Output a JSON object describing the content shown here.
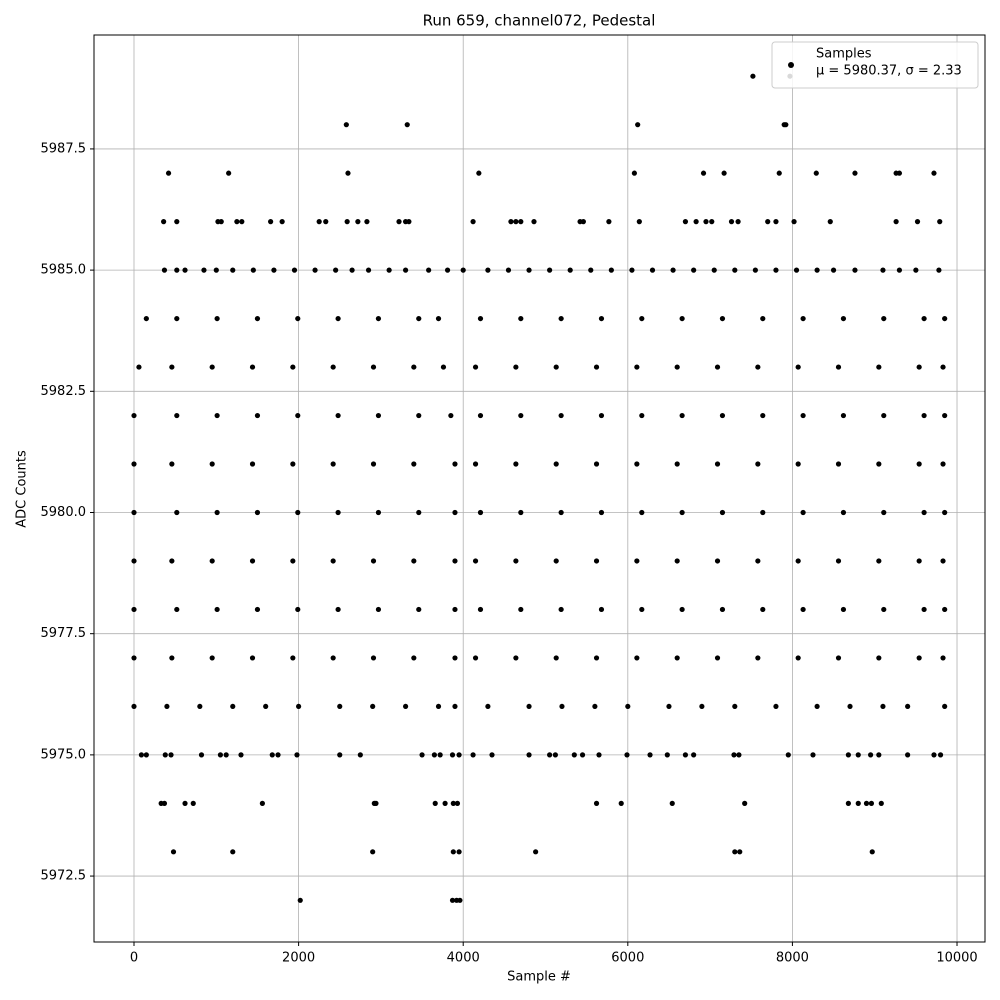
{
  "chart_data": {
    "type": "scatter",
    "title": "Run 659, channel072, Pedestal",
    "x_label": "Sample #",
    "y_label": "ADC Counts",
    "xlim": [
      -486,
      10340
    ],
    "ylim": [
      5971.14,
      5989.85
    ],
    "xticks": [
      0,
      2000,
      4000,
      6000,
      8000,
      10000
    ],
    "yticks": [
      5972.5,
      {
        "value": 5975,
        "label": "5975.0"
      },
      5977.5,
      {
        "value": 5980,
        "label": "5980.0"
      },
      5982.5,
      {
        "value": 5985,
        "label": "5985.0"
      },
      5987.5
    ],
    "grid": true,
    "legend_corner": "upper right",
    "legend_note": "μ = 5980.37, σ = 2.33",
    "series": [
      {
        "name": "Samples",
        "color": "#000000",
        "x": [
          7520,
          7970,
          2580,
          3320,
          6120,
          7900,
          7920,
          420,
          1150,
          2600,
          4190,
          6080,
          6920,
          7170,
          7840,
          8290,
          8760,
          9260,
          9300,
          9720,
          360,
          520,
          1020,
          1060,
          1250,
          1310,
          1660,
          1800,
          2250,
          2330,
          2590,
          2720,
          2830,
          3220,
          3300,
          3340,
          4120,
          4580,
          4640,
          4700,
          4860,
          5420,
          5460,
          5770,
          6140,
          6700,
          6830,
          6950,
          7020,
          7260,
          7340,
          7700,
          7800,
          8020,
          8460,
          9260,
          9520,
          9790,
          370,
          520,
          620,
          850,
          1000,
          1200,
          1450,
          1700,
          1950,
          2200,
          2450,
          2650,
          2850,
          3100,
          3300,
          3580,
          3810,
          4000,
          4300,
          4550,
          4800,
          5050,
          5300,
          5550,
          5800,
          6050,
          6300,
          6550,
          6800,
          7050,
          7300,
          7550,
          7800,
          8050,
          8300,
          8500,
          8760,
          9100,
          9300,
          9500,
          9780,
          150,
          520,
          1010,
          1500,
          1990,
          2480,
          2970,
          3460,
          3700,
          4210,
          4700,
          5190,
          5680,
          6170,
          6660,
          7150,
          7640,
          8130,
          8620,
          9110,
          9600,
          9850,
          60,
          460,
          950,
          1440,
          1930,
          2420,
          2910,
          3400,
          3760,
          4150,
          4640,
          5130,
          5620,
          6110,
          6600,
          7090,
          7580,
          8070,
          8560,
          9050,
          9540,
          9830,
          0,
          520,
          1010,
          1500,
          1990,
          2480,
          2970,
          3460,
          3850,
          4210,
          4700,
          5190,
          5680,
          6170,
          6660,
          7150,
          7640,
          8130,
          8620,
          9110,
          9600,
          9850,
          0,
          460,
          950,
          1440,
          1930,
          2420,
          2910,
          3400,
          3900,
          4150,
          4640,
          5130,
          5620,
          6110,
          6600,
          7090,
          7580,
          8070,
          8560,
          9050,
          9540,
          9830,
          0,
          520,
          1010,
          1500,
          1990,
          2480,
          2970,
          3460,
          3900,
          4210,
          4700,
          5190,
          5680,
          6170,
          6660,
          7150,
          7640,
          8130,
          8620,
          9110,
          9600,
          9850,
          0,
          460,
          950,
          1440,
          1930,
          2420,
          2910,
          3400,
          3900,
          4150,
          4640,
          5130,
          5620,
          6110,
          6600,
          7090,
          7580,
          8070,
          8560,
          9050,
          9540,
          9830,
          0,
          520,
          1010,
          1500,
          1990,
          2480,
          2970,
          3460,
          3900,
          4210,
          4700,
          5190,
          5680,
          6170,
          6660,
          7150,
          7640,
          8130,
          8620,
          9110,
          9600,
          9850,
          0,
          460,
          950,
          1440,
          1930,
          2420,
          2910,
          3400,
          3900,
          4150,
          4640,
          5130,
          5620,
          6110,
          6600,
          7090,
          7580,
          8070,
          8560,
          9050,
          9540,
          9830,
          0,
          400,
          800,
          1200,
          1600,
          2000,
          2500,
          2900,
          3300,
          3700,
          3900,
          4300,
          4800,
          5200,
          5600,
          6000,
          6500,
          6900,
          7300,
          7800,
          8300,
          8700,
          9100,
          9400,
          9850,
          90,
          150,
          380,
          450,
          820,
          1050,
          1120,
          1300,
          1680,
          1750,
          1980,
          2500,
          2750,
          3500,
          3650,
          3720,
          3870,
          3950,
          4120,
          4350,
          4800,
          5050,
          5120,
          5350,
          5450,
          5650,
          5990,
          6270,
          6480,
          6700,
          6800,
          7290,
          7350,
          7950,
          8250,
          8680,
          8800,
          8950,
          9050,
          9400,
          9720,
          9800,
          330,
          370,
          620,
          720,
          1560,
          2920,
          2940,
          3660,
          3780,
          3880,
          3930,
          5620,
          5920,
          6540,
          7420,
          8680,
          8800,
          8900,
          8960,
          9080,
          480,
          1200,
          2900,
          3880,
          3950,
          4880,
          7300,
          7360,
          8970,
          2020,
          3870,
          3920,
          3960
        ],
        "values": [
          5989,
          5989,
          5988,
          5988,
          5988,
          5988,
          5988,
          5987,
          5987,
          5987,
          5987,
          5987,
          5987,
          5987,
          5987,
          5987,
          5987,
          5987,
          5987,
          5987,
          5986,
          5986,
          5986,
          5986,
          5986,
          5986,
          5986,
          5986,
          5986,
          5986,
          5986,
          5986,
          5986,
          5986,
          5986,
          5986,
          5986,
          5986,
          5986,
          5986,
          5986,
          5986,
          5986,
          5986,
          5986,
          5986,
          5986,
          5986,
          5986,
          5986,
          5986,
          5986,
          5986,
          5986,
          5986,
          5986,
          5986,
          5986,
          5985,
          5985,
          5985,
          5985,
          5985,
          5985,
          5985,
          5985,
          5985,
          5985,
          5985,
          5985,
          5985,
          5985,
          5985,
          5985,
          5985,
          5985,
          5985,
          5985,
          5985,
          5985,
          5985,
          5985,
          5985,
          5985,
          5985,
          5985,
          5985,
          5985,
          5985,
          5985,
          5985,
          5985,
          5985,
          5985,
          5985,
          5985,
          5985,
          5985,
          5985,
          5984,
          5984,
          5984,
          5984,
          5984,
          5984,
          5984,
          5984,
          5984,
          5984,
          5984,
          5984,
          5984,
          5984,
          5984,
          5984,
          5984,
          5984,
          5984,
          5984,
          5984,
          5984,
          5983,
          5983,
          5983,
          5983,
          5983,
          5983,
          5983,
          5983,
          5983,
          5983,
          5983,
          5983,
          5983,
          5983,
          5983,
          5983,
          5983,
          5983,
          5983,
          5983,
          5983,
          5983,
          5982,
          5982,
          5982,
          5982,
          5982,
          5982,
          5982,
          5982,
          5982,
          5982,
          5982,
          5982,
          5982,
          5982,
          5982,
          5982,
          5982,
          5982,
          5982,
          5982,
          5982,
          5982,
          5981,
          5981,
          5981,
          5981,
          5981,
          5981,
          5981,
          5981,
          5981,
          5981,
          5981,
          5981,
          5981,
          5981,
          5981,
          5981,
          5981,
          5981,
          5981,
          5981,
          5981,
          5981,
          5980,
          5980,
          5980,
          5980,
          5980,
          5980,
          5980,
          5980,
          5980,
          5980,
          5980,
          5980,
          5980,
          5980,
          5980,
          5980,
          5980,
          5980,
          5980,
          5980,
          5980,
          5980,
          5979,
          5979,
          5979,
          5979,
          5979,
          5979,
          5979,
          5979,
          5979,
          5979,
          5979,
          5979,
          5979,
          5979,
          5979,
          5979,
          5979,
          5979,
          5979,
          5979,
          5979,
          5979,
          5978,
          5978,
          5978,
          5978,
          5978,
          5978,
          5978,
          5978,
          5978,
          5978,
          5978,
          5978,
          5978,
          5978,
          5978,
          5978,
          5978,
          5978,
          5978,
          5978,
          5978,
          5978,
          5977,
          5977,
          5977,
          5977,
          5977,
          5977,
          5977,
          5977,
          5977,
          5977,
          5977,
          5977,
          5977,
          5977,
          5977,
          5977,
          5977,
          5977,
          5977,
          5977,
          5977,
          5977,
          5976,
          5976,
          5976,
          5976,
          5976,
          5976,
          5976,
          5976,
          5976,
          5976,
          5976,
          5976,
          5976,
          5976,
          5976,
          5976,
          5976,
          5976,
          5976,
          5976,
          5976,
          5976,
          5976,
          5976,
          5976,
          5975,
          5975,
          5975,
          5975,
          5975,
          5975,
          5975,
          5975,
          5975,
          5975,
          5975,
          5975,
          5975,
          5975,
          5975,
          5975,
          5975,
          5975,
          5975,
          5975,
          5975,
          5975,
          5975,
          5975,
          5975,
          5975,
          5975,
          5975,
          5975,
          5975,
          5975,
          5975,
          5975,
          5975,
          5975,
          5975,
          5975,
          5975,
          5975,
          5975,
          5975,
          5975,
          5974,
          5974,
          5974,
          5974,
          5974,
          5974,
          5974,
          5974,
          5974,
          5974,
          5974,
          5974,
          5974,
          5974,
          5974,
          5974,
          5974,
          5974,
          5974,
          5974,
          5973,
          5973,
          5973,
          5973,
          5973,
          5973,
          5973,
          5973,
          5973,
          5972,
          5972,
          5972,
          5972
        ]
      }
    ]
  }
}
